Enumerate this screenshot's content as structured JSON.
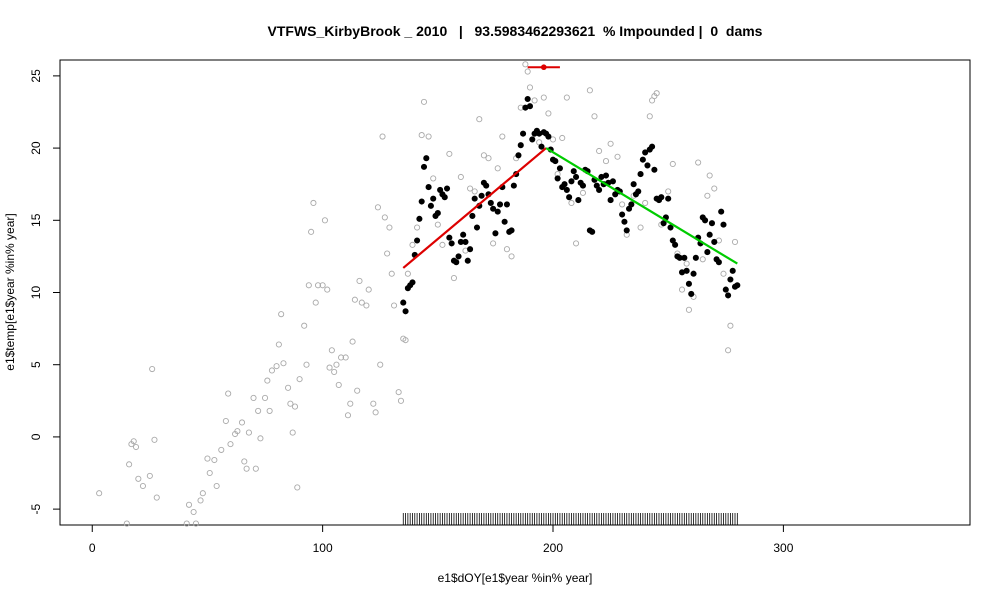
{
  "chart_data": {
    "type": "scatter",
    "title": "VTFWS_KirbyBrook _ 2010   |   93.5983462293621  % Impounded |  0  dams",
    "x_label": "e1$dOY[e1$year %in% year]",
    "y_label": "e1$temp[e1$year %in% year]",
    "xlim": [
      -14,
      381
    ],
    "ylim": [
      -6.1,
      26.1
    ],
    "xticks": [
      0,
      100,
      200,
      300
    ],
    "yticks": [
      -5,
      0,
      5,
      10,
      15,
      20,
      25
    ],
    "series": [
      {
        "color": "#aaaaaa",
        "filled": false,
        "x": [
          3,
          15,
          16,
          17,
          18,
          19,
          20,
          22,
          25,
          26,
          27,
          28,
          41,
          42,
          44,
          45,
          47,
          48,
          50,
          51,
          53,
          54,
          56,
          58,
          59,
          60,
          62,
          63,
          65,
          66,
          67,
          68,
          70,
          71,
          72,
          73,
          75,
          76,
          77,
          78,
          80,
          81,
          82,
          83,
          85,
          86,
          87,
          88,
          89,
          90,
          92,
          93,
          94,
          95,
          96,
          97,
          98,
          100,
          101,
          102,
          103,
          104,
          105,
          106,
          107,
          108,
          110,
          111,
          112,
          113,
          114,
          115,
          116,
          117,
          119,
          120,
          122,
          123,
          124,
          125,
          126,
          127,
          128,
          129,
          130,
          131,
          133,
          134,
          135,
          136,
          137,
          139,
          141,
          143,
          144,
          146,
          148,
          150,
          152,
          155,
          157,
          160,
          162,
          164,
          166,
          168,
          170,
          172,
          174,
          176,
          178,
          180,
          182,
          184,
          186,
          188,
          189,
          190,
          192,
          194,
          196,
          198,
          200,
          202,
          204,
          206,
          208,
          210,
          213,
          216,
          218,
          220,
          223,
          225,
          228,
          230,
          232,
          235,
          238,
          240,
          242,
          243,
          244,
          245,
          247,
          250,
          252,
          254,
          256,
          258,
          259,
          261,
          263,
          265,
          267,
          268,
          270,
          272,
          274,
          276,
          277,
          279
        ],
        "values": [
          -3.9,
          -6,
          -1.9,
          -0.5,
          -0.3,
          -0.7,
          -2.9,
          -3.4,
          -2.7,
          4.7,
          -0.2,
          -4.2,
          -6,
          -4.7,
          -5.2,
          -6,
          -4.4,
          -3.9,
          -1.5,
          -2.5,
          -1.6,
          -3.4,
          -0.9,
          1.1,
          3.0,
          -0.5,
          0.2,
          0.4,
          1.0,
          -1.7,
          -2.2,
          0.3,
          2.7,
          -2.2,
          1.8,
          -0.1,
          2.7,
          3.9,
          1.8,
          4.6,
          4.9,
          6.4,
          8.5,
          5.1,
          3.4,
          2.3,
          0.3,
          2.1,
          -3.5,
          4.0,
          7.7,
          5.0,
          10.5,
          14.2,
          16.2,
          9.3,
          10.5,
          10.5,
          15.0,
          10.2,
          4.8,
          6.0,
          4.5,
          5.0,
          3.6,
          5.5,
          5.5,
          1.5,
          2.3,
          6.6,
          9.5,
          3.2,
          10.8,
          9.3,
          9.1,
          10.2,
          2.3,
          1.7,
          15.9,
          5.0,
          20.8,
          15.2,
          12.7,
          14.5,
          11.3,
          9.1,
          3.1,
          2.5,
          6.8,
          6.7,
          11.3,
          13.3,
          14.5,
          20.9,
          23.2,
          20.8,
          17.9,
          14.7,
          13.3,
          19.6,
          11.0,
          18.0,
          12.9,
          17.2,
          17.0,
          22.0,
          19.5,
          19.3,
          13.4,
          18.6,
          20.8,
          13.0,
          12.5,
          19.3,
          22.8,
          25.8,
          25.3,
          24.2,
          23.3,
          20.4,
          23.5,
          22.4,
          20.6,
          18.2,
          20.7,
          23.5,
          16.2,
          13.4,
          16.9,
          24.0,
          22.2,
          19.8,
          19.1,
          20.3,
          19.4,
          16.1,
          14.0,
          16.7,
          14.5,
          16.2,
          22.2,
          23.3,
          23.6,
          23.8,
          14.7,
          17.0,
          18.9,
          12.7,
          10.2,
          12.0,
          8.8,
          9.7,
          19.0,
          12.3,
          16.7,
          18.1,
          17.2,
          13.6,
          11.3,
          6.0,
          7.7,
          13.5
        ]
      },
      {
        "color": "#000000",
        "filled": true,
        "rug": true,
        "x": [
          135,
          136,
          137,
          138,
          139,
          140,
          141,
          142,
          143,
          144,
          145,
          146,
          147,
          148,
          149,
          150,
          151,
          152,
          153,
          154,
          155,
          156,
          157,
          158,
          159,
          160,
          161,
          162,
          163,
          164,
          165,
          166,
          167,
          168,
          169,
          170,
          171,
          172,
          173,
          174,
          175,
          176,
          177,
          178,
          179,
          180,
          181,
          182,
          183,
          184,
          185,
          186,
          187,
          188,
          189,
          190,
          191,
          192,
          193,
          194,
          195,
          196,
          197,
          198,
          199,
          200,
          201,
          202,
          203,
          204,
          205,
          206,
          207,
          208,
          209,
          210,
          211,
          212,
          213,
          214,
          215,
          216,
          217,
          218,
          219,
          220,
          221,
          222,
          223,
          224,
          225,
          226,
          227,
          228,
          229,
          230,
          231,
          232,
          233,
          234,
          235,
          236,
          237,
          238,
          239,
          240,
          241,
          242,
          243,
          244,
          245,
          246,
          247,
          248,
          249,
          250,
          251,
          252,
          253,
          254,
          255,
          256,
          257,
          258,
          259,
          260,
          261,
          262,
          263,
          264,
          265,
          266,
          267,
          268,
          269,
          270,
          271,
          272,
          273,
          274,
          275,
          276,
          277,
          278,
          279,
          280
        ],
        "values": [
          9.3,
          8.7,
          10.3,
          10.5,
          10.7,
          12.6,
          13.6,
          15.1,
          16.3,
          18.7,
          19.3,
          17.3,
          16,
          16.5,
          15.3,
          15.5,
          17.1,
          16.8,
          16.6,
          17.2,
          13.8,
          13.4,
          12.2,
          12.1,
          12.5,
          13.5,
          14.0,
          13.5,
          12.2,
          13.0,
          15.3,
          16.5,
          14.5,
          16.0,
          16.7,
          17.6,
          17.4,
          16.8,
          16.2,
          15.8,
          14.1,
          15.6,
          16.1,
          17.3,
          14.9,
          16.1,
          14.2,
          14.3,
          17.4,
          18.2,
          19.5,
          20.2,
          21.0,
          22.8,
          23.4,
          22.9,
          20.6,
          21.0,
          21.2,
          21.0,
          20.1,
          21.1,
          21.0,
          20.8,
          19.9,
          19.2,
          19.1,
          17.9,
          18.6,
          17.3,
          17.5,
          17.1,
          16.6,
          17.7,
          18.4,
          18.0,
          16.4,
          17.6,
          17.4,
          18.5,
          18.4,
          14.3,
          14.2,
          17.8,
          17.4,
          17.1,
          18.0,
          17.5,
          18.1,
          17.6,
          16.4,
          17.7,
          16.8,
          17.1,
          17.0,
          15.4,
          14.9,
          14.3,
          15.8,
          16.1,
          17.5,
          16.8,
          17.0,
          18.2,
          19.2,
          19.7,
          18.8,
          19.9,
          20.1,
          18.5,
          16.5,
          16.4,
          16.6,
          14.8,
          15.2,
          16.5,
          14.5,
          13.6,
          13.3,
          12.5,
          12.4,
          11.4,
          12.4,
          11.5,
          10.6,
          9.9,
          11.3,
          12.4,
          13.8,
          13.4,
          15.2,
          15.0,
          12.8,
          14.0,
          14.8,
          13.5,
          12.3,
          12.1,
          15.6,
          14.7,
          10.2,
          9.8,
          10.9,
          11.5,
          10.4,
          10.5
        ]
      }
    ],
    "fits": [
      {
        "color": "#dd0000",
        "x": [
          135,
          197
        ],
        "values": [
          11.7,
          20
        ]
      },
      {
        "color": "#00cc00",
        "x": [
          197,
          280
        ],
        "values": [
          20,
          12
        ]
      }
    ],
    "peak": {
      "color": "#dd0000",
      "x": 196,
      "y": 25.6,
      "xmin": 189,
      "xmax": 203
    }
  }
}
